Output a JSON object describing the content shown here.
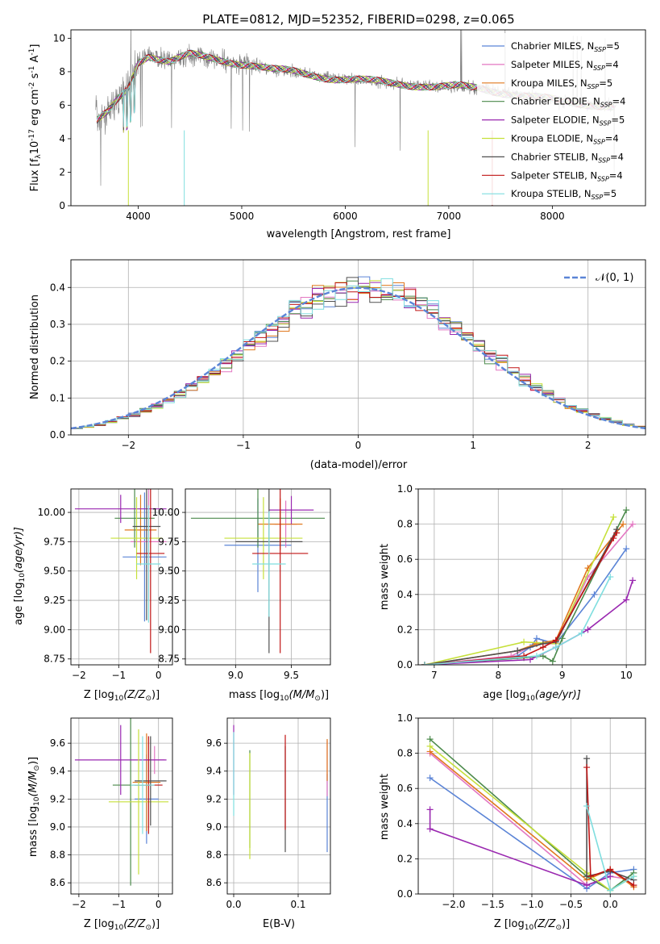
{
  "figure": {
    "title": "PLATE=0812, MJD=52352, FIBERID=0298, z=0.065"
  },
  "models": [
    {
      "name": "Chabrier MILES",
      "nssp": "5",
      "color": "#5b84d6"
    },
    {
      "name": "Salpeter MILES",
      "nssp": "4",
      "color": "#e377c2"
    },
    {
      "name": "Kroupa MILES",
      "nssp": "5",
      "color": "#e0781e"
    },
    {
      "name": "Chabrier ELODIE",
      "nssp": "4",
      "color": "#4b8a4b"
    },
    {
      "name": "Salpeter ELODIE",
      "nssp": "5",
      "color": "#9a28b0"
    },
    {
      "name": "Kroupa ELODIE",
      "nssp": "4",
      "color": "#c6e03a"
    },
    {
      "name": "Chabrier STELIB",
      "nssp": "4",
      "color": "#505050"
    },
    {
      "name": "Salpeter STELIB",
      "nssp": "4",
      "color": "#c01414"
    },
    {
      "name": "Kroupa STELIB",
      "nssp": "5",
      "color": "#7fdedf"
    }
  ],
  "chart_data": [
    {
      "id": "spectrum",
      "type": "line",
      "xlabel": "wavelength [Angstrom, rest frame]",
      "ylabel": "Flux [f",
      "ylabel_sub": "λ",
      "ylabel_rest": "10",
      "ylabel_exp": "-17",
      "ylabel_unit": " erg cm",
      "ylabel_unit_exp": "-2",
      "ylabel_unit2": " s",
      "ylabel_unit2_exp": "-1",
      "ylabel_unit3": " A",
      "ylabel_unit3_exp": "-1",
      "ylabel_end": "]",
      "xlim": [
        3350,
        8900
      ],
      "ylim": [
        0,
        10.5
      ],
      "xticks": [
        4000,
        5000,
        6000,
        7000,
        8000
      ],
      "yticks": [
        0,
        2,
        4,
        6,
        8,
        10
      ],
      "data_color": "#808080",
      "continuum": [
        [
          3600,
          5.0
        ],
        [
          3700,
          5.5
        ],
        [
          3800,
          6.3
        ],
        [
          3900,
          7.0
        ],
        [
          4000,
          8.6
        ],
        [
          4100,
          9.0
        ],
        [
          4300,
          8.6
        ],
        [
          4500,
          9.0
        ],
        [
          4700,
          8.8
        ],
        [
          4900,
          8.6
        ],
        [
          5100,
          8.4
        ],
        [
          5300,
          8.1
        ],
        [
          5500,
          8.0
        ],
        [
          5700,
          7.8
        ],
        [
          5900,
          7.6
        ],
        [
          6100,
          7.5
        ],
        [
          6300,
          7.4
        ],
        [
          6500,
          7.3
        ],
        [
          6700,
          7.2
        ],
        [
          6900,
          7.1
        ],
        [
          7100,
          7.1
        ],
        [
          7300,
          7.0
        ],
        [
          7500,
          6.8
        ],
        [
          7700,
          6.6
        ],
        [
          7900,
          6.4
        ],
        [
          8100,
          6.2
        ],
        [
          8300,
          6.1
        ],
        [
          8500,
          6.0
        ],
        [
          8600,
          5.9
        ]
      ],
      "grid": false,
      "legend": "top-right"
    },
    {
      "id": "residuals",
      "type": "line",
      "xlabel": "(data-model)/error",
      "ylabel": "Normed distribution",
      "xlim": [
        -2.5,
        2.5
      ],
      "ylim": [
        0,
        0.475
      ],
      "xticks": [
        -2,
        -1,
        0,
        1,
        2
      ],
      "yticks": [
        0.0,
        0.1,
        0.2,
        0.3,
        0.4
      ],
      "bin_width": 0.1,
      "normal_label": "𝒩(0, 1)",
      "normal_color": "#5b84d6",
      "grid": true,
      "legend": "top-right"
    },
    {
      "id": "z-age",
      "type": "scatter",
      "xlabel": "Z [log",
      "xlabel_sub": "10",
      "xlabel_rest": "(Z/Z",
      "xlabel_sun": "⊙",
      "xlabel_end": ")]",
      "ylabel": "age  [log",
      "ylabel_sub": "10",
      "ylabel_rest": "(age/yr)]",
      "xlim": [
        -2.2,
        0.35
      ],
      "ylim": [
        8.7,
        10.2
      ],
      "xticks": [
        -2,
        -1,
        0
      ],
      "yticks": [
        8.75,
        9.0,
        9.25,
        9.5,
        9.75,
        10.0
      ],
      "points": [
        {
          "x": -0.35,
          "xerr": 0.55,
          "y": 9.62,
          "yerr": 0.55
        },
        {
          "x": -0.25,
          "xerr": 0.45,
          "y": 9.75,
          "yerr": 0.5
        },
        {
          "x": -0.45,
          "xerr": 0.4,
          "y": 9.85,
          "yerr": 0.3
        },
        {
          "x": -0.6,
          "xerr": 0.5,
          "y": 9.95,
          "yerr": 0.25
        },
        {
          "x": -0.95,
          "xerr": 1.15,
          "y": 10.03,
          "yerr": 0.12
        },
        {
          "x": -0.55,
          "xerr": 0.65,
          "y": 9.78,
          "yerr": 0.35
        },
        {
          "x": -0.3,
          "xerr": 0.35,
          "y": 9.88,
          "yerr": 0.8
        },
        {
          "x": -0.2,
          "xerr": 0.35,
          "y": 9.65,
          "yerr": 0.85
        },
        {
          "x": -0.25,
          "xerr": 0.3,
          "y": 9.56,
          "yerr": 0.5
        }
      ],
      "grid": true
    },
    {
      "id": "mass-age",
      "type": "scatter",
      "xlabel": "mass [log",
      "xlabel_sub": "10",
      "xlabel_rest": "(M/M",
      "xlabel_sun": "⊙",
      "xlabel_end": ")]",
      "xlim": [
        8.55,
        9.85
      ],
      "ylim": [
        8.7,
        10.2
      ],
      "xticks": [
        9.0,
        9.5
      ],
      "yticks": [
        8.75,
        9.0,
        9.25,
        9.5,
        9.75,
        10.0
      ],
      "points": [
        {
          "x": 9.2,
          "xerr": 0.3,
          "y": 9.72,
          "yerr": 0.4
        },
        {
          "x": 9.45,
          "xerr": 0.1,
          "y": 9.9,
          "yerr": 0.2
        },
        {
          "x": 9.4,
          "xerr": 0.2,
          "y": 9.9,
          "yerr": 0.22
        },
        {
          "x": 9.2,
          "xerr": 0.6,
          "y": 9.95,
          "yerr": 0.25
        },
        {
          "x": 9.5,
          "xerr": 0.2,
          "y": 10.02,
          "yerr": 0.12
        },
        {
          "x": 9.25,
          "xerr": 0.35,
          "y": 9.78,
          "yerr": 0.35
        },
        {
          "x": 9.3,
          "xerr": 0.3,
          "y": 9.75,
          "yerr": 0.95
        },
        {
          "x": 9.4,
          "xerr": 0.25,
          "y": 9.65,
          "yerr": 0.85
        },
        {
          "x": 9.3,
          "xerr": 0.15,
          "y": 9.56,
          "yerr": 0.45
        }
      ],
      "grid": true
    },
    {
      "id": "age-weight",
      "type": "line",
      "xlabel": "age  [log",
      "xlabel_sub": "10",
      "xlabel_rest": "(age/yr)]",
      "ylabel": "mass weight",
      "xlim": [
        6.75,
        10.3
      ],
      "ylim": [
        0,
        1.0
      ],
      "xticks": [
        7,
        8,
        9,
        10
      ],
      "yticks": [
        0.0,
        0.2,
        0.4,
        0.6,
        0.8,
        1.0
      ],
      "series": [
        {
          "values": [
            [
              6.85,
              0.0
            ],
            [
              8.3,
              0.05
            ],
            [
              8.5,
              0.1
            ],
            [
              8.6,
              0.15
            ],
            [
              8.9,
              0.12
            ],
            [
              9.5,
              0.4
            ],
            [
              10.0,
              0.66
            ]
          ]
        },
        {
          "values": [
            [
              6.85,
              0.0
            ],
            [
              8.2,
              0.05
            ],
            [
              8.6,
              0.12
            ],
            [
              8.9,
              0.12
            ],
            [
              9.4,
              0.5
            ],
            [
              10.1,
              0.8
            ]
          ]
        },
        {
          "values": [
            [
              6.85,
              0.0
            ],
            [
              8.3,
              0.08
            ],
            [
              8.6,
              0.12
            ],
            [
              8.9,
              0.14
            ],
            [
              9.4,
              0.55
            ],
            [
              9.95,
              0.8
            ]
          ]
        },
        {
          "values": [
            [
              6.85,
              0.0
            ],
            [
              8.4,
              0.04
            ],
            [
              8.7,
              0.05
            ],
            [
              8.85,
              0.02
            ],
            [
              9.0,
              0.15
            ],
            [
              10.0,
              0.88
            ]
          ]
        },
        {
          "values": [
            [
              6.85,
              0.0
            ],
            [
              8.5,
              0.03
            ],
            [
              8.9,
              0.1
            ],
            [
              9.4,
              0.2
            ],
            [
              10.0,
              0.37
            ],
            [
              10.1,
              0.48
            ]
          ]
        },
        {
          "values": [
            [
              6.85,
              0.0
            ],
            [
              8.4,
              0.13
            ],
            [
              8.9,
              0.12
            ],
            [
              9.8,
              0.84
            ]
          ]
        },
        {
          "values": [
            [
              6.85,
              0.0
            ],
            [
              8.3,
              0.08
            ],
            [
              8.7,
              0.12
            ],
            [
              8.9,
              0.13
            ],
            [
              9.85,
              0.77
            ]
          ]
        },
        {
          "values": [
            [
              6.85,
              0.0
            ],
            [
              8.4,
              0.05
            ],
            [
              8.7,
              0.1
            ],
            [
              8.9,
              0.14
            ],
            [
              9.8,
              0.72
            ],
            [
              9.85,
              0.75
            ]
          ]
        },
        {
          "values": [
            [
              6.85,
              0.0
            ],
            [
              8.6,
              0.05
            ],
            [
              8.9,
              0.1
            ],
            [
              9.3,
              0.18
            ],
            [
              9.75,
              0.5
            ]
          ]
        }
      ],
      "grid": true
    },
    {
      "id": "z-mass",
      "type": "scatter",
      "xlabel": "Z [log",
      "xlabel_sub": "10",
      "xlabel_rest": "(Z/Z",
      "xlabel_sun": "⊙",
      "xlabel_end": ")]",
      "ylabel": "mass [log",
      "ylabel_sub": "10",
      "ylabel_rest": "(M/M",
      "ylabel_sun": "⊙",
      "ylabel_end": ")]",
      "xlim": [
        -2.2,
        0.35
      ],
      "ylim": [
        8.52,
        9.78
      ],
      "xticks": [
        -2,
        -1,
        0
      ],
      "yticks": [
        8.6,
        8.8,
        9.0,
        9.2,
        9.4,
        9.6
      ],
      "points": [
        {
          "x": -0.3,
          "xerr": 0.3,
          "y": 9.2,
          "yerr": 0.32
        },
        {
          "x": -0.1,
          "xerr": 0.25,
          "y": 9.48,
          "yerr": 0.1
        },
        {
          "x": -0.3,
          "xerr": 0.35,
          "y": 9.32,
          "yerr": 0.35
        },
        {
          "x": -0.7,
          "xerr": 0.45,
          "y": 9.3,
          "yerr": 0.72
        },
        {
          "x": -0.95,
          "xerr": 1.15,
          "y": 9.48,
          "yerr": 0.25
        },
        {
          "x": -0.5,
          "xerr": 0.75,
          "y": 9.18,
          "yerr": 0.52
        },
        {
          "x": -0.2,
          "xerr": 0.4,
          "y": 9.33,
          "yerr": 0.32
        },
        {
          "x": -0.25,
          "xerr": 0.35,
          "y": 9.3,
          "yerr": 0.35
        },
        {
          "x": -0.4,
          "xerr": 0.3,
          "y": 9.3,
          "yerr": 0.35
        }
      ],
      "grid": true
    },
    {
      "id": "ebv-mass",
      "type": "scatter",
      "xlabel": "E(B-V)",
      "xlim": [
        -0.01,
        0.15
      ],
      "ylim": [
        8.52,
        9.78
      ],
      "xticks": [
        0.0,
        0.1
      ],
      "yticks": [
        8.6,
        8.8,
        9.0,
        9.2,
        9.4,
        9.6
      ],
      "points": [
        {
          "x": 0.145,
          "yerr": 0.28,
          "y": 9.1
        },
        {
          "x": 0.145,
          "yerr": 0.2,
          "y": 9.42
        },
        {
          "x": 0.145,
          "yerr": 0.15,
          "y": 9.48
        },
        {
          "x": 0.025,
          "yerr": 0.35,
          "y": 9.2
        },
        {
          "x": 0.0,
          "yerr": 0.25,
          "y": 9.48
        },
        {
          "x": 0.025,
          "yerr": 0.38,
          "y": 9.15
        },
        {
          "x": 0.08,
          "yerr": 0.38,
          "y": 9.2
        },
        {
          "x": 0.08,
          "yerr": 0.34,
          "y": 9.32
        },
        {
          "x": 0.0,
          "yerr": 0.3,
          "y": 9.38
        }
      ],
      "grid": true
    },
    {
      "id": "z-weight",
      "type": "line",
      "xlabel": "Z [log",
      "xlabel_sub": "10",
      "xlabel_rest": "(Z/Z",
      "xlabel_sun": "⊙",
      "xlabel_end": ")]",
      "ylabel": "mass weight",
      "xlim": [
        -2.45,
        0.45
      ],
      "ylim": [
        0,
        1.0
      ],
      "xticks": [
        -2.0,
        -1.5,
        -1.0,
        -0.5,
        0.0
      ],
      "yticks": [
        0.0,
        0.2,
        0.4,
        0.6,
        0.8,
        1.0
      ],
      "series": [
        {
          "values": [
            [
              -2.3,
              0.66
            ],
            [
              -0.3,
              0.03
            ],
            [
              0.0,
              0.12
            ],
            [
              0.3,
              0.14
            ]
          ]
        },
        {
          "values": [
            [
              -2.3,
              0.8
            ],
            [
              -0.3,
              0.05
            ],
            [
              0.0,
              0.1
            ],
            [
              0.3,
              0.08
            ]
          ]
        },
        {
          "values": [
            [
              -2.3,
              0.81
            ],
            [
              -0.3,
              0.08
            ],
            [
              0.0,
              0.14
            ],
            [
              0.3,
              0.04
            ]
          ]
        },
        {
          "values": [
            [
              -2.3,
              0.88
            ],
            [
              -0.3,
              0.1
            ],
            [
              0.0,
              0.02
            ],
            [
              0.3,
              0.12
            ]
          ]
        },
        {
          "values": [
            [
              -2.3,
              0.48
            ],
            [
              -2.3,
              0.37
            ],
            [
              -0.3,
              0.05
            ],
            [
              0.0,
              0.1
            ]
          ]
        },
        {
          "values": [
            [
              -2.3,
              0.84
            ],
            [
              -0.3,
              0.12
            ],
            [
              0.0,
              0.02
            ],
            [
              0.3,
              0.1
            ]
          ]
        },
        {
          "values": [
            [
              -0.3,
              0.77
            ],
            [
              -0.3,
              0.1
            ],
            [
              0.0,
              0.13
            ],
            [
              0.3,
              0.08
            ]
          ]
        },
        {
          "values": [
            [
              -0.3,
              0.72
            ],
            [
              -0.25,
              0.1
            ],
            [
              0.0,
              0.14
            ],
            [
              0.3,
              0.05
            ]
          ]
        },
        {
          "values": [
            [
              -0.3,
              0.5
            ],
            [
              0.0,
              0.02
            ],
            [
              0.3,
              0.1
            ]
          ]
        }
      ],
      "grid": true
    }
  ]
}
